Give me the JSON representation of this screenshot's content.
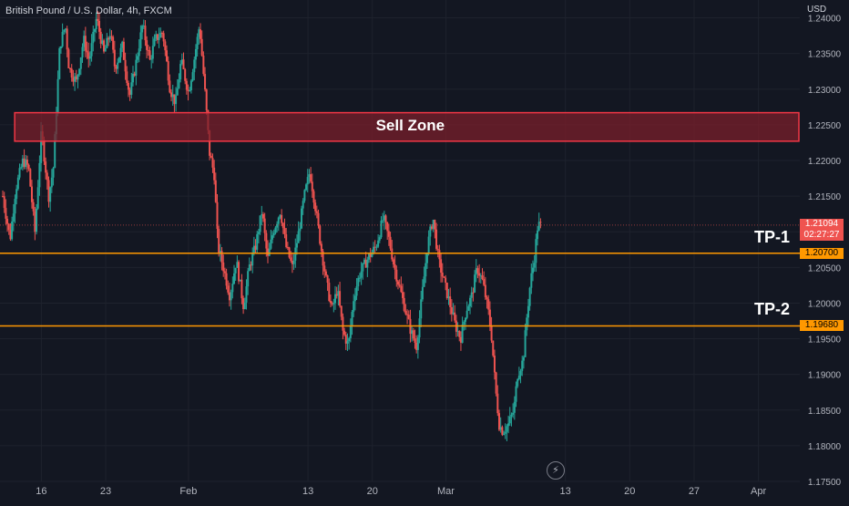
{
  "symbol": {
    "title": "British Pound / U.S. Dollar, 4h, FXCM",
    "currency": "USD"
  },
  "colors": {
    "background": "#131722",
    "up": "#26a69a",
    "down": "#ef5350",
    "zone_fill": "#7a1f2b",
    "zone_border": "#f23645",
    "level_line": "#ff9800",
    "axis_text": "#b2b5be"
  },
  "icons": {
    "replay": "lightning-icon",
    "replay_glyph": "⚡"
  },
  "annotations": {
    "sell_zone": {
      "label": "Sell Zone",
      "top": 1.2267,
      "bottom": 1.2227
    },
    "tp1": {
      "label": "TP-1",
      "price": 1.207,
      "tag": "1.20700"
    },
    "tp2": {
      "label": "TP-2",
      "price": 1.1968,
      "tag": "1.19680"
    }
  },
  "current_price": {
    "value": 1.21094,
    "label": "1.21094",
    "countdown": "02:27:27"
  },
  "chart_data": {
    "type": "candlestick",
    "title": "British Pound / U.S. Dollar, 4h, FXCM",
    "ylim": [
      1.175,
      1.2425
    ],
    "y_ticks": [
      "1.24000",
      "1.23500",
      "1.23000",
      "1.22500",
      "1.22000",
      "1.21500",
      "1.21000",
      "1.20500",
      "1.20000",
      "1.19500",
      "1.19000",
      "1.18500",
      "1.18000",
      "1.17500"
    ],
    "y_tick_values": [
      1.24,
      1.235,
      1.23,
      1.225,
      1.22,
      1.215,
      1.21,
      1.205,
      1.2,
      1.195,
      1.19,
      1.185,
      1.18,
      1.175
    ],
    "x_ticks": [
      "16",
      "23",
      "Feb",
      "13",
      "20",
      "Mar",
      "13",
      "20",
      "27",
      "Apr"
    ],
    "x_tick_positions": [
      16,
      23,
      32,
      45,
      52,
      60,
      73,
      80,
      87,
      94
    ],
    "x_range": [
      11.5,
      98.5
    ],
    "grid": true,
    "candles_per_day": 6,
    "anchors": [
      [
        11.8,
        1.215
      ],
      [
        12.6,
        1.209
      ],
      [
        13.2,
        1.216
      ],
      [
        14.0,
        1.22
      ],
      [
        14.6,
        1.219
      ],
      [
        15.3,
        1.21
      ],
      [
        16.0,
        1.224
      ],
      [
        16.8,
        1.215
      ],
      [
        17.3,
        1.219
      ],
      [
        18.0,
        1.236
      ],
      [
        18.6,
        1.239
      ],
      [
        19.0,
        1.233
      ],
      [
        19.8,
        1.231
      ],
      [
        20.6,
        1.237
      ],
      [
        21.2,
        1.234
      ],
      [
        22.0,
        1.24
      ],
      [
        22.8,
        1.235
      ],
      [
        23.5,
        1.238
      ],
      [
        24.0,
        1.233
      ],
      [
        24.8,
        1.236
      ],
      [
        25.6,
        1.229
      ],
      [
        26.2,
        1.233
      ],
      [
        27.0,
        1.239
      ],
      [
        27.8,
        1.234
      ],
      [
        28.4,
        1.237
      ],
      [
        29.2,
        1.238
      ],
      [
        30.0,
        1.23
      ],
      [
        30.6,
        1.228
      ],
      [
        31.2,
        1.234
      ],
      [
        32.0,
        1.2295
      ],
      [
        32.6,
        1.234
      ],
      [
        33.2,
        1.239
      ],
      [
        33.8,
        1.2295
      ],
      [
        34.3,
        1.221
      ],
      [
        34.8,
        1.218
      ],
      [
        35.2,
        1.208
      ],
      [
        35.8,
        1.205
      ],
      [
        36.5,
        1.201
      ],
      [
        37.2,
        1.206
      ],
      [
        38.0,
        1.1995
      ],
      [
        38.6,
        1.205
      ],
      [
        39.3,
        1.208
      ],
      [
        40.0,
        1.213
      ],
      [
        40.6,
        1.206
      ],
      [
        41.2,
        1.21
      ],
      [
        42.0,
        1.213
      ],
      [
        42.6,
        1.208
      ],
      [
        43.3,
        1.205
      ],
      [
        44.0,
        1.21
      ],
      [
        44.6,
        1.215
      ],
      [
        45.2,
        1.2185
      ],
      [
        45.8,
        1.2135
      ],
      [
        46.4,
        1.208
      ],
      [
        47.0,
        1.203
      ],
      [
        47.6,
        1.199
      ],
      [
        48.2,
        1.202
      ],
      [
        48.8,
        1.196
      ],
      [
        49.4,
        1.194
      ],
      [
        50.0,
        1.201
      ],
      [
        50.6,
        1.204
      ],
      [
        51.4,
        1.206
      ],
      [
        52.4,
        1.208
      ],
      [
        53.2,
        1.212
      ],
      [
        53.8,
        1.209
      ],
      [
        54.4,
        1.205
      ],
      [
        55.0,
        1.202
      ],
      [
        55.6,
        1.199
      ],
      [
        56.2,
        1.196
      ],
      [
        56.8,
        1.194
      ],
      [
        57.4,
        1.201
      ],
      [
        58.0,
        1.208
      ],
      [
        58.6,
        1.212
      ],
      [
        59.2,
        1.206
      ],
      [
        59.8,
        1.203
      ],
      [
        60.4,
        1.2
      ],
      [
        61.0,
        1.197
      ],
      [
        61.6,
        1.195
      ],
      [
        62.2,
        1.199
      ],
      [
        62.8,
        1.201
      ],
      [
        63.4,
        1.205
      ],
      [
        64.0,
        1.203
      ],
      [
        64.6,
        1.199
      ],
      [
        65.0,
        1.195
      ],
      [
        65.4,
        1.188
      ],
      [
        65.8,
        1.183
      ],
      [
        66.2,
        1.182
      ],
      [
        66.8,
        1.183
      ],
      [
        67.4,
        1.185
      ],
      [
        67.8,
        1.19
      ],
      [
        68.4,
        1.192
      ],
      [
        68.8,
        1.198
      ],
      [
        69.2,
        1.203
      ],
      [
        69.6,
        1.206
      ],
      [
        70.0,
        1.211
      ],
      [
        70.3,
        1.2109
      ]
    ]
  }
}
